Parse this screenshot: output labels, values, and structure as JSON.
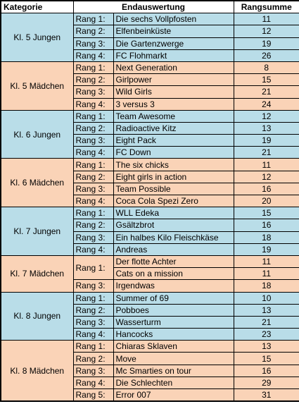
{
  "headers": {
    "kategorie": "Kategorie",
    "endauswertung": "Endauswertung",
    "rangsumme": "Rangsumme"
  },
  "colors": {
    "blue": "#b9dde8",
    "orange": "#fad3b7"
  },
  "groups": [
    {
      "kategorie": "Kl. 5 Jungen",
      "color": "blue",
      "rows": [
        {
          "rang": "Rang 1:",
          "name": "Die sechs Vollpfosten",
          "summe": "11"
        },
        {
          "rang": "Rang 2:",
          "name": "Elfenbeinküste",
          "summe": "12"
        },
        {
          "rang": "Rang 3:",
          "name": "Die Gartenzwerge",
          "summe": "19"
        },
        {
          "rang": "Rang 4:",
          "name": "FC Flohmarkt",
          "summe": "26"
        }
      ]
    },
    {
      "kategorie": "Kl. 5 Mädchen",
      "color": "orange",
      "rows": [
        {
          "rang": "Rang 1:",
          "name": "Next Generation",
          "summe": "8"
        },
        {
          "rang": "Rang 2:",
          "name": "Girlpower",
          "summe": "15"
        },
        {
          "rang": "Rang 3:",
          "name": "Wild Girls",
          "summe": "21"
        },
        {
          "rang": "Rang 4:",
          "name": "3 versus 3",
          "summe": "24"
        }
      ]
    },
    {
      "kategorie": "Kl. 6 Jungen",
      "color": "blue",
      "rows": [
        {
          "rang": "Rang 1:",
          "name": "Team Awesome",
          "summe": "12"
        },
        {
          "rang": "Rang 2:",
          "name": "Radioactive Kitz",
          "summe": "13"
        },
        {
          "rang": "Rang 3:",
          "name": "Eight Pack",
          "summe": "19"
        },
        {
          "rang": "Rang 4:",
          "name": "FC Down",
          "summe": "21"
        }
      ]
    },
    {
      "kategorie": "Kl. 6 Mädchen",
      "color": "orange",
      "rows": [
        {
          "rang": "Rang 1:",
          "name": "The six chicks",
          "summe": "11"
        },
        {
          "rang": "Rang 2:",
          "name": "Eight girls in action",
          "summe": "12"
        },
        {
          "rang": "Rang 3:",
          "name": "Team Possible",
          "summe": "16"
        },
        {
          "rang": "Rang 4:",
          "name": "Coca Cola Spezi Zero",
          "summe": "20"
        }
      ]
    },
    {
      "kategorie": "Kl. 7 Jungen",
      "color": "blue",
      "rows": [
        {
          "rang": "Rang 1:",
          "name": "WLL Edeka",
          "summe": "15"
        },
        {
          "rang": "Rang 2:",
          "name": "Gsältzbrot",
          "summe": "16"
        },
        {
          "rang": "Rang 3:",
          "name": "Ein halbes Kilo Fleischkäse",
          "summe": "18"
        },
        {
          "rang": "Rang 4:",
          "name": "Andreas",
          "summe": "19"
        }
      ]
    },
    {
      "kategorie": "Kl. 7 Mädchen",
      "color": "orange",
      "rows": [
        {
          "rang": "Rang 1:",
          "name": "Der flotte Achter",
          "summe": "11",
          "rang_span": 2
        },
        {
          "rang": null,
          "name": "Cats on a mission",
          "summe": "11"
        },
        {
          "rang": "Rang 3:",
          "name": "Irgendwas",
          "summe": "18"
        }
      ]
    },
    {
      "kategorie": "Kl. 8 Jungen",
      "color": "blue",
      "rows": [
        {
          "rang": "Rang 1:",
          "name": "Summer of 69",
          "summe": "10"
        },
        {
          "rang": "Rang 2:",
          "name": "Pobboes",
          "summe": "13"
        },
        {
          "rang": "Rang 3:",
          "name": "Wasserturm",
          "summe": "21"
        },
        {
          "rang": "Rang 4:",
          "name": "Hancocks",
          "summe": "23"
        }
      ]
    },
    {
      "kategorie": "Kl. 8 Mädchen",
      "color": "orange",
      "rows": [
        {
          "rang": "Rang 1:",
          "name": "Chiaras Sklaven",
          "summe": "13"
        },
        {
          "rang": "Rang 2:",
          "name": "Move",
          "summe": "15"
        },
        {
          "rang": "Rang 3:",
          "name": "Mc Smarties on tour",
          "summe": "16"
        },
        {
          "rang": "Rang 4:",
          "name": "Die Schlechten",
          "summe": "29"
        },
        {
          "rang": "Rang 5:",
          "name": "Error 007",
          "summe": "31"
        }
      ]
    }
  ]
}
